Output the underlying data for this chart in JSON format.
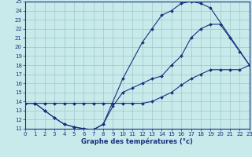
{
  "xlabel": "Graphe des températures (°c)",
  "bg_color": "#c8eaea",
  "grid_color": "#9dc8c8",
  "line_color": "#1a3080",
  "xlim": [
    0,
    23
  ],
  "ylim": [
    11,
    25
  ],
  "xticks": [
    0,
    1,
    2,
    3,
    4,
    5,
    6,
    7,
    8,
    9,
    10,
    11,
    12,
    13,
    14,
    15,
    16,
    17,
    18,
    19,
    20,
    21,
    22,
    23
  ],
  "yticks": [
    11,
    12,
    13,
    14,
    15,
    16,
    17,
    18,
    19,
    20,
    21,
    22,
    23,
    24,
    25
  ],
  "line1": {
    "x": [
      0,
      1,
      2,
      3,
      4,
      5,
      6,
      7,
      8,
      10,
      12,
      13,
      14,
      15,
      16,
      17,
      18,
      19,
      23
    ],
    "y": [
      13.8,
      13.8,
      13.0,
      12.2,
      11.5,
      11.2,
      11.0,
      10.9,
      11.5,
      16.5,
      20.5,
      22.0,
      23.5,
      24.0,
      24.8,
      25.0,
      24.8,
      24.3,
      18.0
    ]
  },
  "line2": {
    "x": [
      0,
      1,
      2,
      3,
      4,
      5,
      6,
      7,
      8,
      9,
      10,
      11,
      12,
      13,
      14,
      15,
      16,
      17,
      18,
      19,
      20,
      21,
      22,
      23
    ],
    "y": [
      13.8,
      13.8,
      13.0,
      12.2,
      11.5,
      11.2,
      11.0,
      10.9,
      11.5,
      13.5,
      15.0,
      15.5,
      16.0,
      16.5,
      16.8,
      18.0,
      19.0,
      21.0,
      22.0,
      22.5,
      22.5,
      21.0,
      19.5,
      18.0
    ]
  },
  "line3": {
    "x": [
      0,
      1,
      2,
      3,
      4,
      5,
      6,
      7,
      8,
      9,
      10,
      11,
      12,
      13,
      14,
      15,
      16,
      17,
      18,
      19,
      20,
      21,
      22,
      23
    ],
    "y": [
      13.8,
      13.8,
      13.8,
      13.8,
      13.8,
      13.8,
      13.8,
      13.8,
      13.8,
      13.8,
      13.8,
      13.8,
      13.8,
      14.0,
      14.5,
      15.0,
      15.8,
      16.5,
      17.0,
      17.5,
      17.5,
      17.5,
      17.5,
      18.0
    ]
  }
}
